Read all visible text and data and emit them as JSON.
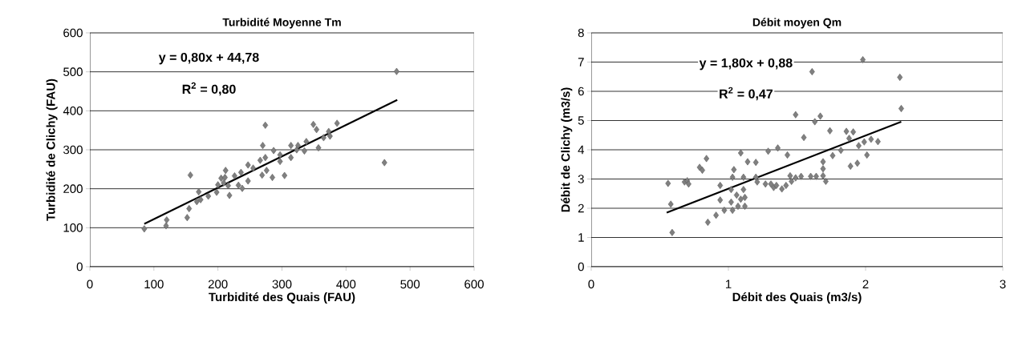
{
  "chart_data": [
    {
      "type": "scatter",
      "title": "Turbidité Moyenne Tm",
      "xlabel": "Turbidité des Quais (FAU)",
      "ylabel": "Turbidité de Clichy (FAU)",
      "xlim": [
        0,
        600
      ],
      "ylim": [
        0,
        600
      ],
      "xticks": [
        0,
        100,
        200,
        300,
        400,
        500,
        600
      ],
      "yticks": [
        0,
        100,
        200,
        300,
        400,
        500,
        600
      ],
      "grid": "y",
      "annotations": [
        "y = 0,80x + 44,78",
        "R$^{2}$ = 0,80"
      ],
      "series": [
        {
          "marker": "diamond",
          "color": "#808080",
          "x": [
            85,
            119,
            120,
            152,
            155,
            157,
            170,
            167,
            173,
            185,
            198,
            200,
            205,
            212,
            211,
            209,
            218,
            216,
            226,
            232,
            238,
            236,
            247,
            247,
            255,
            266,
            269,
            270,
            274,
            276,
            274,
            285,
            287,
            297,
            297,
            304,
            314,
            314,
            323,
            325,
            335,
            338,
            349,
            354,
            357,
            365,
            479,
            460,
            386,
            373,
            375
          ],
          "values": [
            97,
            105,
            120,
            126,
            149,
            235,
            192,
            167,
            172,
            181,
            191,
            210,
            227,
            247,
            229,
            215,
            183,
            208,
            233,
            209,
            201,
            242,
            261,
            220,
            253,
            273,
            235,
            311,
            363,
            247,
            280,
            229,
            298,
            287,
            270,
            234,
            311,
            280,
            300,
            311,
            297,
            321,
            365,
            352,
            305,
            331,
            501,
            267,
            368,
            347,
            335
          ]
        },
        {
          "type": "line",
          "marker": "none",
          "color": "#000000",
          "x": [
            85,
            480
          ],
          "values": [
            110,
            428
          ]
        }
      ]
    },
    {
      "type": "scatter",
      "title": "Débit moyen Qm",
      "xlabel": "Débit des Quais (m3/s)",
      "ylabel": "Débit de Clichy (m3/s)",
      "xlim": [
        0,
        3
      ],
      "ylim": [
        0,
        8
      ],
      "xticks": [
        0,
        1,
        2,
        3
      ],
      "yticks": [
        0,
        1,
        2,
        3,
        4,
        5,
        6,
        7,
        8
      ],
      "grid": "y",
      "annotations": [
        "y = 1,80x + 0,88",
        "R$^{2}$ = 0,47"
      ],
      "series": [
        {
          "marker": "diamond",
          "color": "#808080",
          "x": [
            0.56,
            0.58,
            0.59,
            0.68,
            0.7,
            0.71,
            0.79,
            0.81,
            0.84,
            0.85,
            0.91,
            0.94,
            0.94,
            0.97,
            1.02,
            1.02,
            1.03,
            1.04,
            1.03,
            1.06,
            1.07,
            1.09,
            1.09,
            1.11,
            1.11,
            1.12,
            1.12,
            1.14,
            1.2,
            1.2,
            1.21,
            1.27,
            1.29,
            1.31,
            1.33,
            1.35,
            1.36,
            1.39,
            1.42,
            1.43,
            1.45,
            1.46,
            1.49,
            1.49,
            1.53,
            1.55,
            1.61,
            1.63,
            1.67,
            1.74,
            1.76,
            1.82,
            1.86,
            1.91,
            1.88,
            1.89,
            1.94,
            1.95,
            1.98,
            1.99,
            2.01,
            2.04,
            2.09,
            2.25,
            2.26,
            1.69,
            1.69,
            1.69,
            1.71,
            1.6,
            1.64
          ],
          "values": [
            2.85,
            2.14,
            1.17,
            2.9,
            2.94,
            2.83,
            3.4,
            3.3,
            3.7,
            1.52,
            1.76,
            2.78,
            2.28,
            1.93,
            2.64,
            2.21,
            3.06,
            3.32,
            1.93,
            2.45,
            2.07,
            3.89,
            2.31,
            3.06,
            2.64,
            2.37,
            2.07,
            3.59,
            3.57,
            3.06,
            2.9,
            2.83,
            3.95,
            2.83,
            2.71,
            2.78,
            4.06,
            2.66,
            2.78,
            3.82,
            3.11,
            2.92,
            5.2,
            3.04,
            3.09,
            4.42,
            6.67,
            4.96,
            5.15,
            4.65,
            3.8,
            3.98,
            4.63,
            4.61,
            4.39,
            3.44,
            3.54,
            4.14,
            7.08,
            4.27,
            3.82,
            4.36,
            4.28,
            6.48,
            5.41,
            3.59,
            3.35,
            3.11,
            2.92,
            3.09,
            3.09
          ]
        },
        {
          "type": "line",
          "marker": "none",
          "color": "#000000",
          "x": [
            0.55,
            2.26
          ],
          "values": [
            1.85,
            4.96
          ]
        }
      ]
    }
  ]
}
